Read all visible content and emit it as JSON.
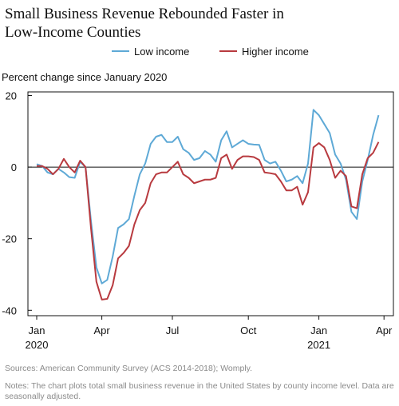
{
  "chart_data": {
    "type": "line",
    "title": "Small Business Revenue Rebounded Faster in Low-Income Counties",
    "ylabel": "Percent change since January 2020",
    "source": "Sources: American Community Survey (ACS 2014-2018); Womply.",
    "notes": "Notes: The chart plots total small business revenue in the United States by county income level. Data are seasonally adjusted.",
    "categories": [
      "Jan 2020",
      null,
      null,
      null,
      null,
      null,
      null,
      null,
      null,
      null,
      null,
      null,
      "Apr",
      null,
      null,
      null,
      null,
      null,
      null,
      null,
      null,
      null,
      null,
      null,
      null,
      "Jul",
      null,
      null,
      null,
      null,
      null,
      null,
      null,
      null,
      null,
      null,
      null,
      null,
      null,
      "Oct",
      null,
      null,
      null,
      null,
      null,
      null,
      null,
      null,
      null,
      null,
      null,
      null,
      "Jan 2021",
      null,
      null,
      null,
      null,
      null,
      null,
      null,
      null,
      null,
      null,
      null,
      "Apr"
    ],
    "series": [
      {
        "name": "Low income",
        "color": "#5ea9d6",
        "values": [
          0.8,
          0.3,
          -1.5,
          -2,
          -0.5,
          -1.5,
          -2.8,
          -3,
          1.5,
          0,
          -15,
          -28,
          -32.5,
          -31.5,
          -25,
          -17,
          -16,
          -14.5,
          -8,
          -2,
          1,
          6.5,
          8.5,
          9,
          7,
          7,
          8.5,
          5,
          4,
          2,
          2.5,
          4.5,
          3.5,
          1.5,
          7.5,
          10,
          5.5,
          6.5,
          7.5,
          6.5,
          6.3,
          6.2,
          2,
          1,
          1.5,
          -1,
          -4,
          -3.5,
          -2.5,
          -4.5,
          1,
          16,
          14.5,
          12,
          9.5,
          3.5,
          1,
          -3.5,
          -12.5,
          -14.5,
          -4,
          2,
          9,
          14.5,
          null
        ]
      },
      {
        "name": "Higher income",
        "color": "#b83a3f",
        "values": [
          0.3,
          0.3,
          -0.5,
          -2,
          -0.5,
          2.3,
          0,
          -1.5,
          1.8,
          0,
          -17,
          -32,
          -37,
          -36.8,
          -33,
          -25.5,
          -24,
          -22,
          -16,
          -12,
          -10,
          -4.5,
          -2,
          -1.5,
          -1.5,
          0,
          1.5,
          -2,
          -3,
          -4.5,
          -4,
          -3.5,
          -3.5,
          -3,
          2.5,
          3.5,
          -0.5,
          2,
          3,
          3,
          2.8,
          2,
          -1.5,
          -1.7,
          -2,
          -4,
          -6.5,
          -6.5,
          -5.5,
          -10.5,
          -7,
          5.5,
          6.7,
          5.5,
          2,
          -3,
          -1,
          -2.5,
          -11,
          -11.5,
          -2,
          2.5,
          4,
          7,
          null
        ]
      }
    ],
    "ylim": [
      -41.5,
      21
    ],
    "yticks": [
      -40,
      -20,
      0,
      20
    ],
    "zero_line": true
  }
}
